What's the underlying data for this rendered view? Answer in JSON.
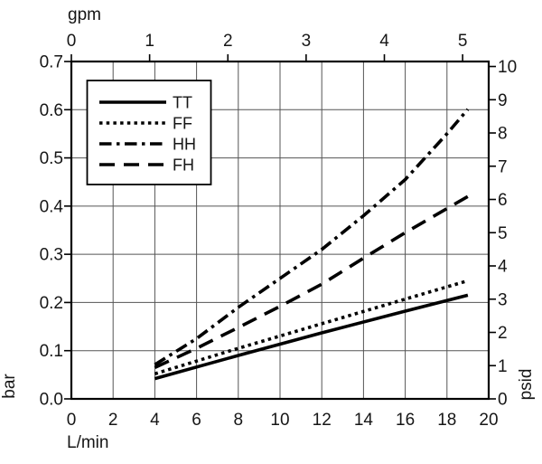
{
  "chart_data": {
    "type": "line",
    "title": "",
    "grid": true,
    "legend_position": "top-left",
    "axes": {
      "top": {
        "label": "gpm",
        "ticks": [
          0,
          1,
          2,
          3,
          4,
          5
        ],
        "lmin_per_gpm": 3.75
      },
      "bottom": {
        "label": "L/min",
        "ticks": [
          0,
          2,
          4,
          6,
          8,
          10,
          12,
          14,
          16,
          18,
          20
        ],
        "min": 0,
        "max": 20
      },
      "left": {
        "label": "bar",
        "tick_labels": [
          "0.0",
          "0.1",
          "0.2",
          "0.3",
          "0.4",
          "0.5",
          "0.6",
          "0.7"
        ],
        "min": 0,
        "max": 0.7
      },
      "right": {
        "label": "psid",
        "ticks": [
          0,
          1,
          2,
          3,
          4,
          5,
          6,
          7,
          8,
          9,
          10
        ],
        "psi_per_bar": 14.5
      }
    },
    "series": [
      {
        "name": "TT",
        "style": "solid",
        "points": [
          [
            4,
            0.042
          ],
          [
            8,
            0.09
          ],
          [
            12,
            0.137
          ],
          [
            16,
            0.182
          ],
          [
            19,
            0.215
          ]
        ]
      },
      {
        "name": "FF",
        "style": "dotted",
        "points": [
          [
            4,
            0.052
          ],
          [
            8,
            0.105
          ],
          [
            12,
            0.156
          ],
          [
            16,
            0.207
          ],
          [
            19,
            0.245
          ]
        ]
      },
      {
        "name": "HH",
        "style": "dashdot",
        "points": [
          [
            4,
            0.071
          ],
          [
            6,
            0.125
          ],
          [
            8,
            0.19
          ],
          [
            10,
            0.25
          ],
          [
            12,
            0.31
          ],
          [
            14,
            0.38
          ],
          [
            16,
            0.455
          ],
          [
            18,
            0.55
          ],
          [
            19,
            0.601
          ]
        ]
      },
      {
        "name": "FH",
        "style": "longdash",
        "points": [
          [
            4,
            0.065
          ],
          [
            6,
            0.105
          ],
          [
            8,
            0.148
          ],
          [
            10,
            0.192
          ],
          [
            12,
            0.238
          ],
          [
            14,
            0.292
          ],
          [
            16,
            0.345
          ],
          [
            19,
            0.42
          ]
        ]
      }
    ],
    "legend": {
      "items": [
        {
          "label": "TT",
          "style": "solid"
        },
        {
          "label": "FF",
          "style": "dotted"
        },
        {
          "label": "HH",
          "style": "dashdot"
        },
        {
          "label": "FH",
          "style": "longdash"
        }
      ]
    },
    "colors": {
      "line": "#000000",
      "grid": "#555555",
      "border": "#000000",
      "text": "#161616",
      "background": "#ffffff"
    }
  }
}
